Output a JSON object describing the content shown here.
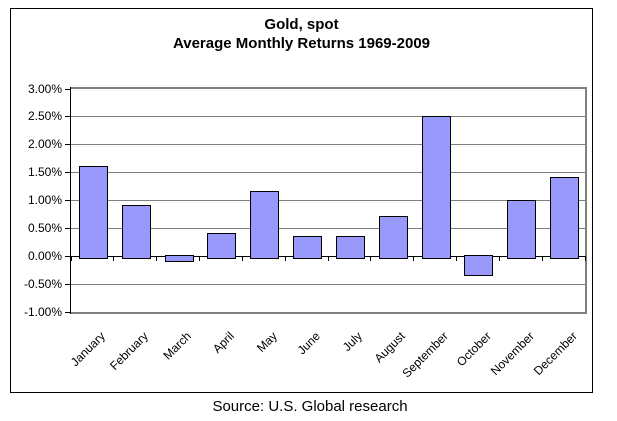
{
  "chart_data": {
    "type": "bar",
    "title": "Gold, spot",
    "subtitle": "Average Monthly Returns 1969-2009",
    "source": "Source: U.S. Global research",
    "categories": [
      "January",
      "February",
      "March",
      "April",
      "May",
      "June",
      "July",
      "August",
      "September",
      "October",
      "November",
      "December"
    ],
    "values": [
      1.6,
      0.9,
      -0.05,
      0.4,
      1.15,
      0.35,
      0.35,
      0.7,
      2.5,
      -0.3,
      1.0,
      1.4
    ],
    "unit": "%",
    "ylim": [
      -1.0,
      3.0
    ],
    "ytick_step": 0.5,
    "ytick_labels": [
      "3.00%",
      "2.50%",
      "2.00%",
      "1.50%",
      "1.00%",
      "0.50%",
      "0.00%",
      "-0.50%",
      "-1.00%"
    ],
    "grid": true,
    "legend": "none",
    "colors": {
      "bar_fill": "#9999FC",
      "bar_border": "#000000",
      "gridline": "#808080",
      "zero_line": "#000000",
      "axis": "#000000",
      "plot_border": "#808080",
      "chart_border": "#000000",
      "background": "#FFFFFF"
    }
  }
}
